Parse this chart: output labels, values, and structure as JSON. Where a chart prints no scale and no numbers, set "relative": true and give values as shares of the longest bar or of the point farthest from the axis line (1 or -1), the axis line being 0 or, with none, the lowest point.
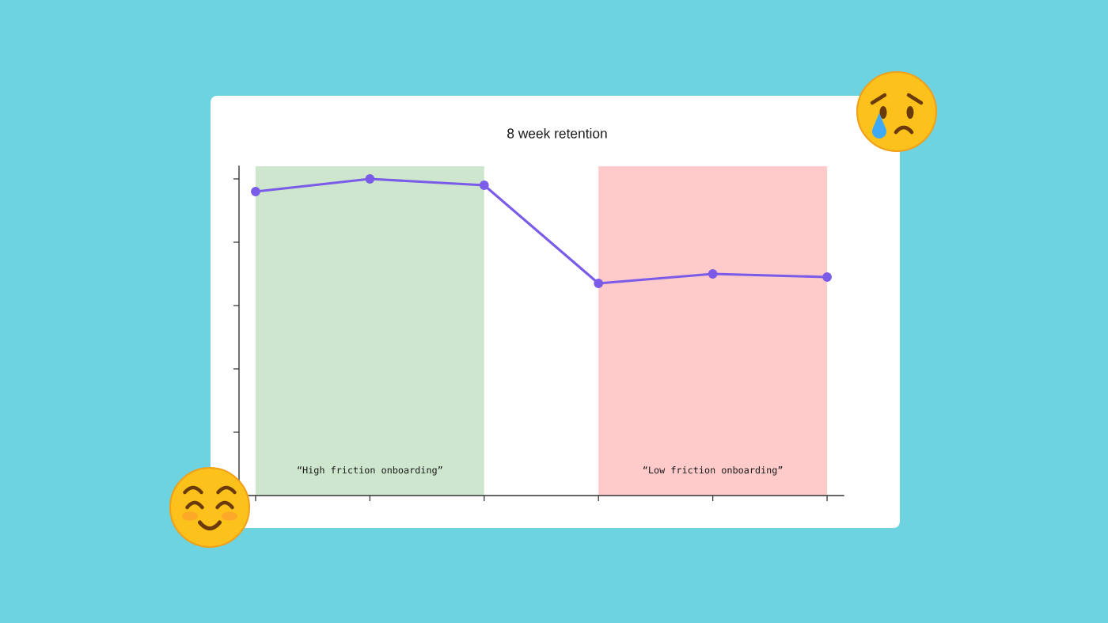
{
  "chart_data": {
    "type": "line",
    "title": "8 week retention",
    "categories": [
      null,
      null,
      null,
      null,
      null,
      null
    ],
    "series": [
      {
        "color": "#7b5ce8",
        "values": [
          0.96,
          1.0,
          0.98,
          0.67,
          0.7,
          0.69
        ]
      }
    ],
    "relative": true,
    "marker": "circle",
    "line_style": "solid",
    "annotations": [
      "“High friction onboarding”",
      "“Low friction onboarding”"
    ]
  }
}
